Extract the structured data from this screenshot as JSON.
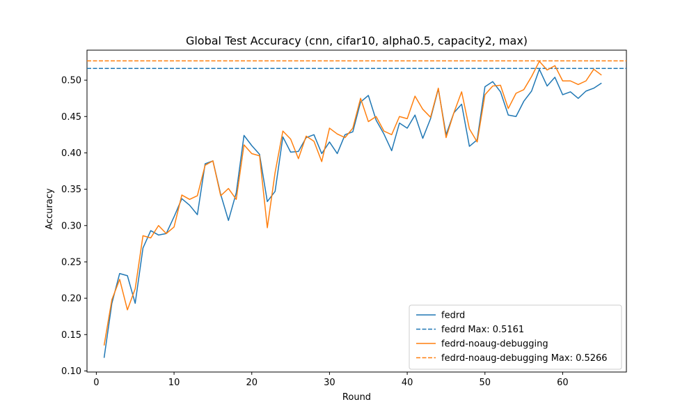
{
  "chart_data": {
    "type": "line",
    "title": "Global Test Accuracy (cnn, cifar10, alpha0.5, capacity2, max)",
    "xlabel": "Round",
    "ylabel": "Accuracy",
    "xlim": [
      -1.2,
      68.2
    ],
    "ylim": [
      0.0985,
      0.5413
    ],
    "xticks": [
      0,
      10,
      20,
      30,
      40,
      50,
      60
    ],
    "xtick_labels": [
      "0",
      "10",
      "20",
      "30",
      "40",
      "50",
      "60"
    ],
    "yticks": [
      0.1,
      0.15,
      0.2,
      0.25,
      0.3,
      0.35,
      0.4,
      0.45,
      0.5
    ],
    "ytick_labels": [
      "0.10",
      "0.15",
      "0.20",
      "0.25",
      "0.30",
      "0.35",
      "0.40",
      "0.45",
      "0.50"
    ],
    "grid": false,
    "legend_position": "bottom-right",
    "x": [
      1,
      2,
      3,
      4,
      5,
      6,
      7,
      8,
      9,
      10,
      11,
      12,
      13,
      14,
      15,
      16,
      17,
      18,
      19,
      20,
      21,
      22,
      23,
      24,
      25,
      26,
      27,
      28,
      29,
      30,
      31,
      32,
      33,
      34,
      35,
      36,
      37,
      38,
      39,
      40,
      41,
      42,
      43,
      44,
      45,
      46,
      47,
      48,
      49,
      50,
      51,
      52,
      53,
      54,
      55,
      56,
      57,
      58,
      59,
      60,
      61,
      62,
      63,
      64,
      65
    ],
    "series": [
      {
        "name": "fedrd",
        "color": "#1f77b4",
        "style": "solid",
        "values": [
          0.118,
          0.193,
          0.234,
          0.231,
          0.193,
          0.269,
          0.293,
          0.287,
          0.289,
          0.312,
          0.337,
          0.328,
          0.315,
          0.385,
          0.389,
          0.343,
          0.307,
          0.345,
          0.424,
          0.41,
          0.398,
          0.333,
          0.347,
          0.422,
          0.401,
          0.402,
          0.421,
          0.425,
          0.399,
          0.415,
          0.399,
          0.425,
          0.429,
          0.47,
          0.479,
          0.445,
          0.426,
          0.403,
          0.441,
          0.434,
          0.452,
          0.42,
          0.447,
          0.488,
          0.425,
          0.455,
          0.467,
          0.409,
          0.418,
          0.491,
          0.498,
          0.484,
          0.452,
          0.45,
          0.471,
          0.485,
          0.515,
          0.492,
          0.504,
          0.48,
          0.484,
          0.475,
          0.485,
          0.489,
          0.496
        ]
      },
      {
        "name": "fedrd Max: 0.5161",
        "color": "#1f77b4",
        "style": "dashed",
        "constant": 0.5161
      },
      {
        "name": "fedrd-noaug-debugging",
        "color": "#ff7f0e",
        "style": "solid",
        "values": [
          0.135,
          0.198,
          0.226,
          0.184,
          0.213,
          0.286,
          0.283,
          0.3,
          0.289,
          0.298,
          0.342,
          0.336,
          0.341,
          0.383,
          0.389,
          0.341,
          0.351,
          0.336,
          0.411,
          0.399,
          0.396,
          0.297,
          0.373,
          0.43,
          0.419,
          0.392,
          0.423,
          0.416,
          0.388,
          0.434,
          0.426,
          0.421,
          0.434,
          0.475,
          0.443,
          0.45,
          0.43,
          0.425,
          0.45,
          0.447,
          0.478,
          0.46,
          0.449,
          0.489,
          0.421,
          0.455,
          0.484,
          0.433,
          0.415,
          0.48,
          0.492,
          0.493,
          0.461,
          0.482,
          0.487,
          0.505,
          0.526,
          0.514,
          0.52,
          0.499,
          0.499,
          0.494,
          0.499,
          0.515,
          0.507
        ]
      },
      {
        "name": "fedrd-noaug-debugging Max: 0.5266",
        "color": "#ff7f0e",
        "style": "dashed",
        "constant": 0.5266
      }
    ]
  }
}
